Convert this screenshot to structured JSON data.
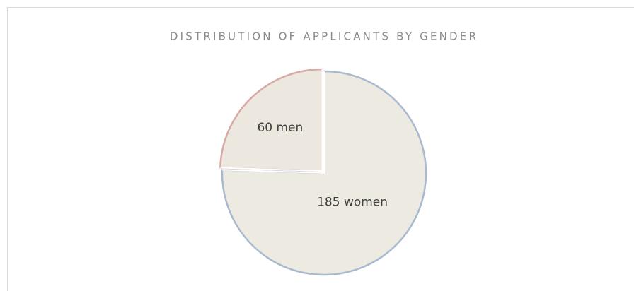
{
  "chart_data": {
    "type": "pie",
    "title": "DISTRIBUTION OF APPLICANTS BY GENDER",
    "values": [
      185,
      60
    ],
    "value_labels": [
      "185 women",
      "60 men"
    ],
    "colors": [
      "#edebe1",
      "#ede8df"
    ],
    "edge_colors": [
      "#a9b9cf",
      "#d9a9a7"
    ]
  }
}
